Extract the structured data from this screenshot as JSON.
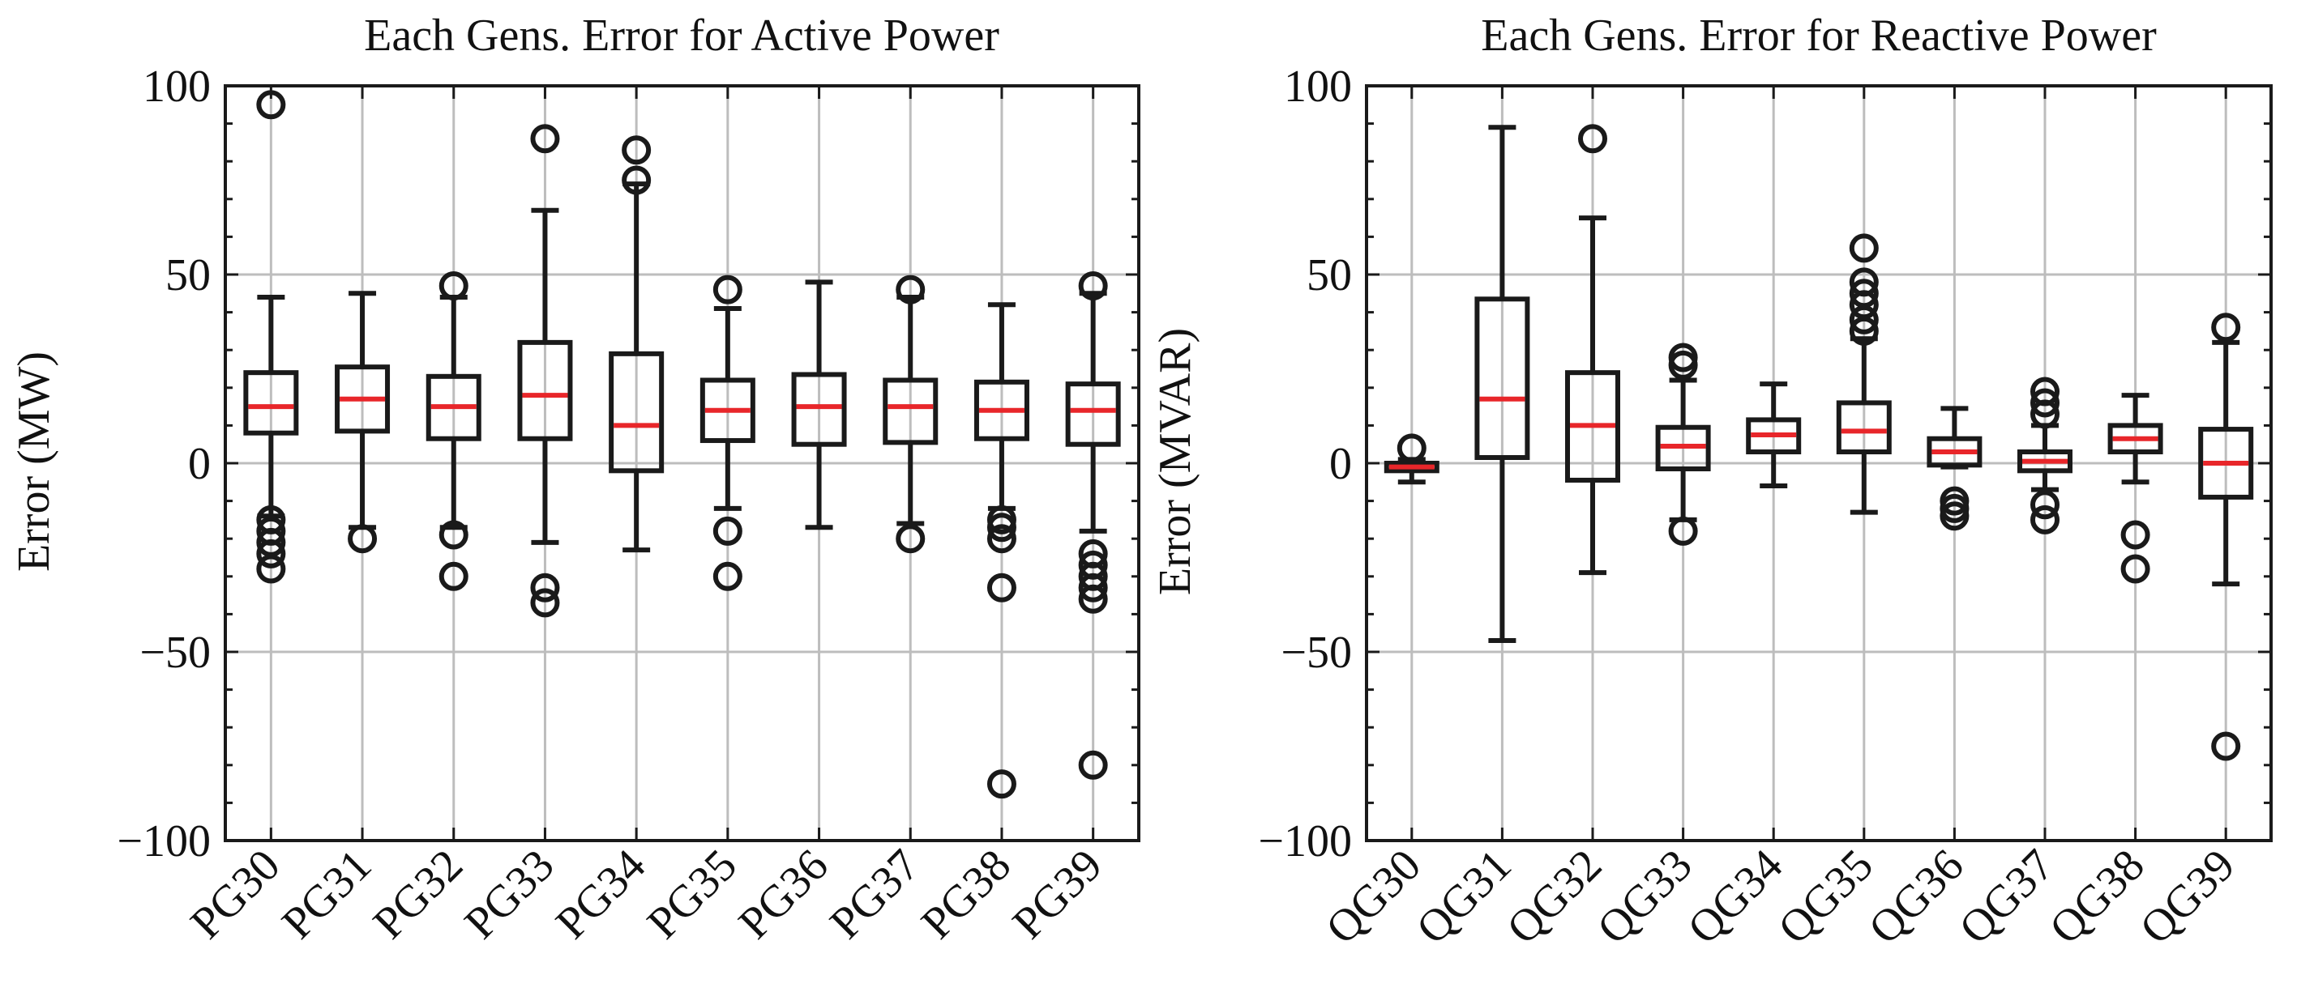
{
  "chart_data": [
    {
      "type": "boxplot",
      "id": "active",
      "title": "Each Gens. Error for Active Power",
      "ylabel": "Error (MW)",
      "xlabel": "",
      "ylim": [
        -100,
        100
      ],
      "yticks": [
        -100,
        -50,
        0,
        50,
        100
      ],
      "ytick_labels": [
        "−100",
        "−50",
        "0",
        "50",
        "100"
      ],
      "grid": true,
      "median_color": "#e8262a",
      "categories": [
        "PG30",
        "PG31",
        "PG32",
        "PG33",
        "PG34",
        "PG35",
        "PG36",
        "PG37",
        "PG38",
        "PG39"
      ],
      "boxes": [
        {
          "whislo": -14,
          "q1": 8,
          "med": 15,
          "q3": 24,
          "whishi": 44,
          "fliers": [
            95,
            -15,
            -18,
            -21,
            -24,
            -28
          ]
        },
        {
          "whislo": -17,
          "q1": 8.5,
          "med": 17,
          "q3": 25.5,
          "whishi": 45,
          "fliers": [
            -20
          ]
        },
        {
          "whislo": -17,
          "q1": 6.5,
          "med": 15,
          "q3": 23,
          "whishi": 44,
          "fliers": [
            47,
            -19,
            -30
          ]
        },
        {
          "whislo": -21,
          "q1": 6.5,
          "med": 18,
          "q3": 32,
          "whishi": 67,
          "fliers": [
            86,
            -33,
            -37
          ]
        },
        {
          "whislo": -23,
          "q1": -2,
          "med": 10,
          "q3": 29,
          "whishi": 74,
          "fliers": [
            83,
            75
          ]
        },
        {
          "whislo": -12,
          "q1": 6,
          "med": 14,
          "q3": 22,
          "whishi": 41,
          "fliers": [
            46,
            -18,
            -30
          ]
        },
        {
          "whislo": -17,
          "q1": 5,
          "med": 15,
          "q3": 23.5,
          "whishi": 48,
          "fliers": []
        },
        {
          "whislo": -16,
          "q1": 5.5,
          "med": 15,
          "q3": 22,
          "whishi": 44,
          "fliers": [
            46,
            -20
          ]
        },
        {
          "whislo": -12,
          "q1": 6.5,
          "med": 14,
          "q3": 21.5,
          "whishi": 42,
          "fliers": [
            -15,
            -17,
            -20,
            -33,
            -85
          ]
        },
        {
          "whislo": -18,
          "q1": 5,
          "med": 14,
          "q3": 21,
          "whishi": 45,
          "fliers": [
            47,
            -24,
            -27,
            -30,
            -33,
            -36,
            -80
          ]
        }
      ]
    },
    {
      "type": "boxplot",
      "id": "reactive",
      "title": "Each Gens. Error for Reactive Power",
      "ylabel": "Error (MVAR)",
      "xlabel": "",
      "ylim": [
        -100,
        100
      ],
      "yticks": [
        -100,
        -50,
        0,
        50,
        100
      ],
      "ytick_labels": [
        "−100",
        "−50",
        "0",
        "50",
        "100"
      ],
      "grid": true,
      "median_color": "#e8262a",
      "categories": [
        "QG30",
        "QG31",
        "QG32",
        "QG33",
        "QG34",
        "QG35",
        "QG36",
        "QG37",
        "QG38",
        "QG39"
      ],
      "boxes": [
        {
          "whislo": -5,
          "q1": -2,
          "med": -1,
          "q3": 0,
          "whishi": 1,
          "fliers": [
            4
          ]
        },
        {
          "whislo": -47,
          "q1": 1.5,
          "med": 17,
          "q3": 43.5,
          "whishi": 89,
          "fliers": []
        },
        {
          "whislo": -29,
          "q1": -4.5,
          "med": 10,
          "q3": 24,
          "whishi": 65,
          "fliers": [
            86
          ]
        },
        {
          "whislo": -15,
          "q1": -1.5,
          "med": 4.5,
          "q3": 9.5,
          "whishi": 22,
          "fliers": [
            28,
            26,
            -18
          ]
        },
        {
          "whislo": -6,
          "q1": 3,
          "med": 7.5,
          "q3": 11.5,
          "whishi": 21,
          "fliers": []
        },
        {
          "whislo": -13,
          "q1": 3,
          "med": 8.5,
          "q3": 16,
          "whishi": 33,
          "fliers": [
            57,
            48,
            45,
            42,
            38,
            35
          ]
        },
        {
          "whislo": -1,
          "q1": -0.5,
          "med": 3,
          "q3": 6.5,
          "whishi": 14.5,
          "fliers": [
            -10,
            -12,
            -14
          ]
        },
        {
          "whislo": -7,
          "q1": -2,
          "med": 0.5,
          "q3": 3,
          "whishi": 10,
          "fliers": [
            19,
            16,
            13,
            -11,
            -15
          ]
        },
        {
          "whislo": -5,
          "q1": 3,
          "med": 6.5,
          "q3": 10,
          "whishi": 18,
          "fliers": [
            -19,
            -28
          ]
        },
        {
          "whislo": -32,
          "q1": -9,
          "med": 0,
          "q3": 9,
          "whishi": 32,
          "fliers": [
            36,
            -75
          ]
        }
      ]
    }
  ]
}
